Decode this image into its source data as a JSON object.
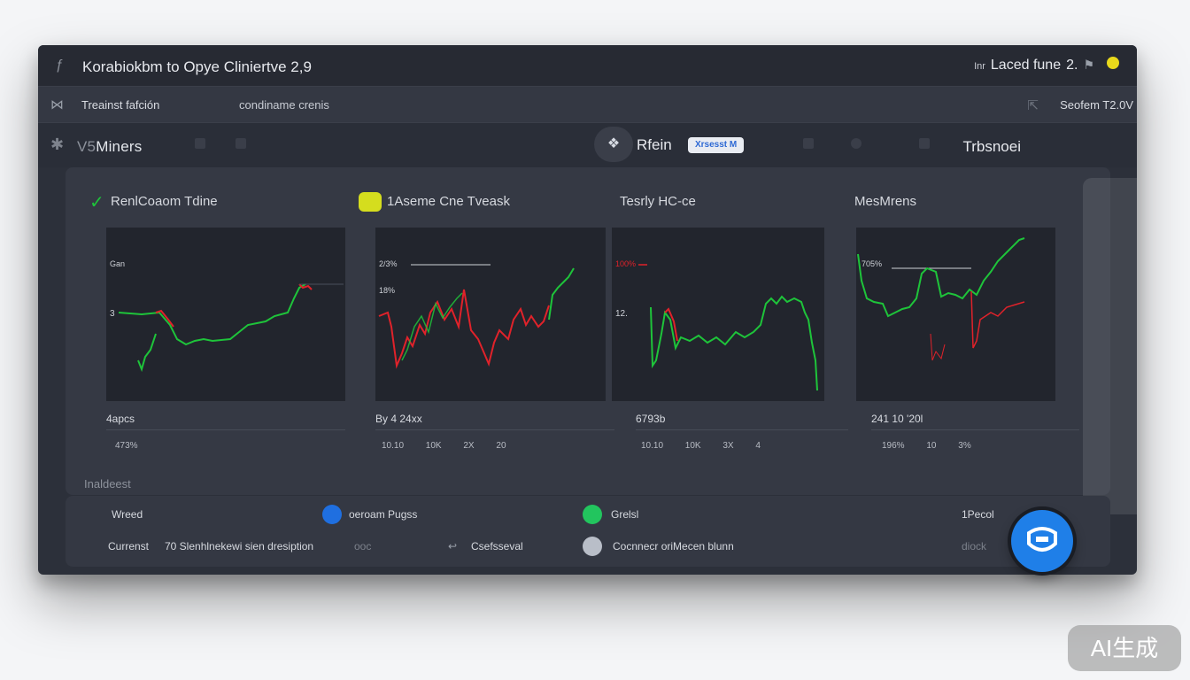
{
  "window": {
    "title": "Korabiokbm to Opye Cliniertve 2,9",
    "right_small": "Inr",
    "right_label": "Laced fune",
    "right_extra": "2."
  },
  "subbar": {
    "left_label": "Treainst fafción",
    "center_label": "condiname crenis",
    "version": "Seofem T2.0V"
  },
  "toolbar": {
    "miners_prefix": "V5",
    "miners": "Miners",
    "center_label": "Rfein",
    "badge": "Xrsesst M",
    "right_label": "Trbsnoei"
  },
  "cards": [
    {
      "title": "RenlCoaom Tdine",
      "foot1": "4apcs",
      "foot2": "473%",
      "y_ticks": [
        "Gan",
        "3"
      ],
      "palette": [
        "#1ec43a",
        "#e0222a"
      ],
      "icon": "check-icon"
    },
    {
      "title": "1Aseme Cne Tveask",
      "foot1": "By 4 24xx",
      "foot2": "10.10 10K 2X 20",
      "y_ticks": [
        "2/3%",
        "18%"
      ],
      "palette": [
        "#e0222a",
        "#1ec43a"
      ],
      "icon": "yellow-badge-icon"
    },
    {
      "title": "Tesrly HC-ce",
      "foot1": "6793b",
      "foot2": "10.10 10K 3X 4",
      "y_ticks": [
        "100%",
        "12."
      ],
      "palette": [
        "#1ec43a",
        "#e0222a"
      ],
      "icon": ""
    },
    {
      "title": "MesMrens",
      "foot1": "241 10 '20l",
      "foot2": "196% 10 3%",
      "y_ticks": [
        "705%"
      ],
      "palette": [
        "#1ec43a",
        "#e0222a"
      ],
      "icon": ""
    }
  ],
  "section_label": "Inaldeest",
  "bottom": {
    "row_a": [
      "Wreed",
      "oeroam Pugss",
      "Grelsl",
      "1Pecol"
    ],
    "row_b_label": "Currenst",
    "row_b_text": "70 Slenhlnekewi sien dresiption",
    "row_b_more": "ooc",
    "row_b_mid": "Csefsseval",
    "row_b_right": "Cocnnecr oriMecen blunn",
    "row_b_end": "diock"
  },
  "watermark": "AI生成",
  "colors": {
    "green": "#1ec43a",
    "red": "#e0222a",
    "accent_blue": "#1f7fe8",
    "window_bg": "#2c303a"
  }
}
